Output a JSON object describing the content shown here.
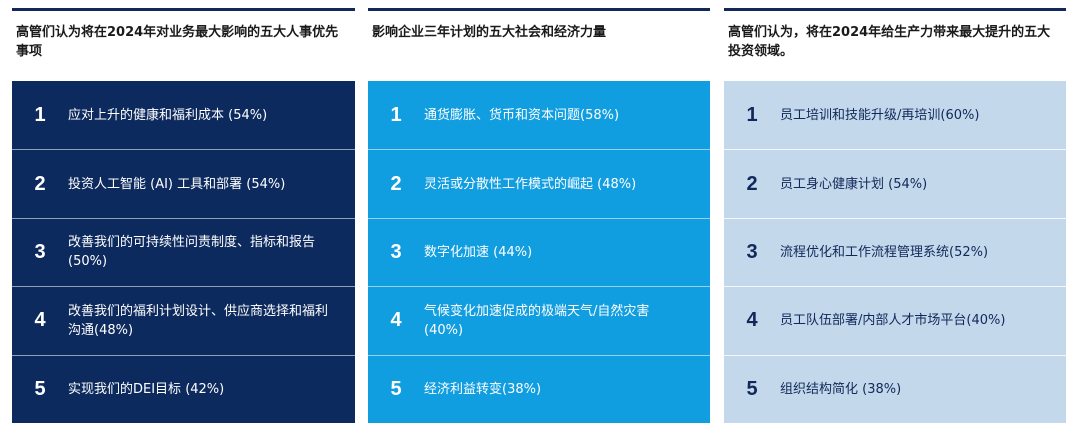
{
  "columns": [
    {
      "title": "高管们认为将在2024年对业务最大影响的五大人事优先事项",
      "items": [
        {
          "num": "1",
          "text": "应对上升的健康和福利成本 (54%)"
        },
        {
          "num": "2",
          "text": "投资人工智能 (AI) 工具和部署 (54%)"
        },
        {
          "num": "3",
          "text": "改善我们的可持续性问责制度、指标和报告(50%)"
        },
        {
          "num": "4",
          "text": "改善我们的福利计划设计、供应商选择和福利沟通(48%)"
        },
        {
          "num": "5",
          "text": "实现我们的DEI目标 (42%)"
        }
      ]
    },
    {
      "title": "影响企业三年计划的五大社会和经济力量",
      "items": [
        {
          "num": "1",
          "text": "通货膨胀、货币和资本问题(58%)"
        },
        {
          "num": "2",
          "text": "灵活或分散性工作模式的崛起 (48%)"
        },
        {
          "num": "3",
          "text": "数字化加速 (44%)"
        },
        {
          "num": "4",
          "text": "气候变化加速促成的极端天气/自然灾害 (40%)"
        },
        {
          "num": "5",
          "text": "经济利益转变(38%)"
        }
      ]
    },
    {
      "title": "高管们认为，将在2024年给生产力带来最大提升的五大投资领域。",
      "items": [
        {
          "num": "1",
          "text": "员工培训和技能升级/再培训(60%)"
        },
        {
          "num": "2",
          "text": "员工身心健康计划 (54%)"
        },
        {
          "num": "3",
          "text": "流程优化和工作流程管理系统(52%)"
        },
        {
          "num": "4",
          "text": "员工队伍部署/内部人才市场平台(40%)"
        },
        {
          "num": "5",
          "text": "组织结构简化 (38%)"
        }
      ]
    }
  ]
}
